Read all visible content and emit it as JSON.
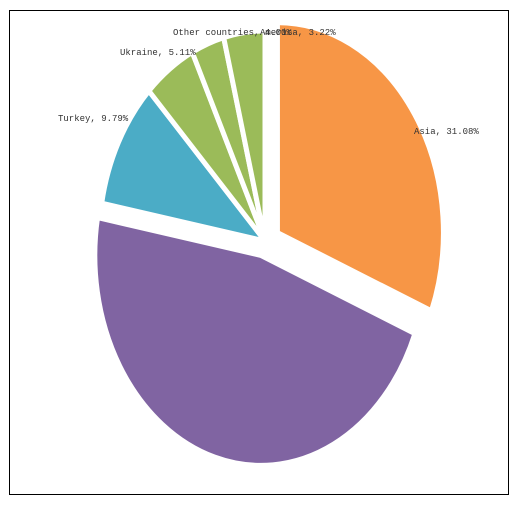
{
  "chart_data": {
    "type": "pie",
    "title": "",
    "slices": [
      {
        "label": "Asia, 31.08%",
        "value": 31.08,
        "color": "#F79646",
        "exploded": true
      },
      {
        "label": "",
        "value": 46.8,
        "color": "#8064A2",
        "exploded": true
      },
      {
        "label": "Turkey, 9.79%",
        "value": 9.79,
        "color": "#4BACC6",
        "exploded": false
      },
      {
        "label": "Ukraine, 5.11%",
        "value": 5.11,
        "color": "#9BBB59",
        "exploded": false
      },
      {
        "label": "America, 3.22%",
        "value": 3.22,
        "color": "#9BBB59",
        "exploded": false
      },
      {
        "label": "Other countries, 4.00%",
        "value": 4.0,
        "color": "#9BBB59",
        "exploded": false
      }
    ],
    "legend": "none",
    "grid": false
  }
}
